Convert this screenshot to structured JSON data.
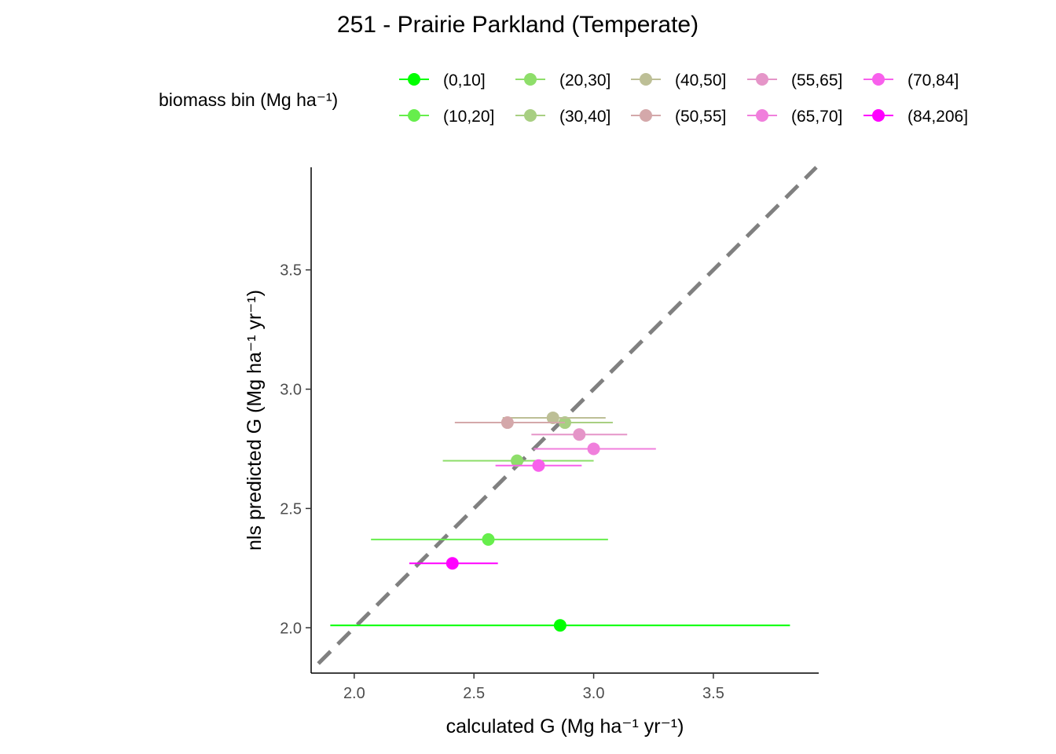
{
  "chart_data": {
    "type": "scatter",
    "title": "251 - Prairie Parkland (Temperate)",
    "xlabel": "calculated G (Mg ha⁻¹ yr⁻¹)",
    "ylabel": "nls predicted G (Mg ha⁻¹ yr⁻¹)",
    "xlim": [
      1.82,
      3.94
    ],
    "ylim": [
      1.81,
      3.93
    ],
    "x_ticks": [
      "2.0",
      "2.5",
      "3.0",
      "3.5"
    ],
    "y_ticks": [
      "2.0",
      "2.5",
      "3.0",
      "3.5"
    ],
    "reference_line": {
      "slope": 1,
      "intercept": 0,
      "style": "dashed",
      "color": "#808080"
    },
    "grid": false,
    "legend": {
      "title": "biomass bin (Mg ha⁻¹)",
      "position": "top"
    },
    "series": [
      {
        "name": "(0,10]",
        "color": "#00FF00",
        "x": 2.86,
        "y": 2.01,
        "xmin": 1.9,
        "xmax": 3.82
      },
      {
        "name": "(10,20]",
        "color": "#66EE4C",
        "x": 2.56,
        "y": 2.37,
        "xmin": 2.07,
        "xmax": 3.06
      },
      {
        "name": "(20,30]",
        "color": "#8EDE6A",
        "x": 2.68,
        "y": 2.7,
        "xmin": 2.37,
        "xmax": 3.0
      },
      {
        "name": "(30,40]",
        "color": "#A8CF82",
        "x": 2.88,
        "y": 2.86,
        "xmin": 2.65,
        "xmax": 3.08
      },
      {
        "name": "(40,50]",
        "color": "#BDBF96",
        "x": 2.83,
        "y": 2.88,
        "xmin": 2.62,
        "xmax": 3.05
      },
      {
        "name": "(50,55]",
        "color": "#D4A8AA",
        "x": 2.64,
        "y": 2.86,
        "xmin": 2.42,
        "xmax": 2.88
      },
      {
        "name": "(55,65]",
        "color": "#E595C8",
        "x": 2.94,
        "y": 2.81,
        "xmin": 2.74,
        "xmax": 3.14
      },
      {
        "name": "(65,70]",
        "color": "#F07FDC",
        "x": 3.0,
        "y": 2.75,
        "xmin": 2.75,
        "xmax": 3.26
      },
      {
        "name": "(70,84]",
        "color": "#F860EC",
        "x": 2.77,
        "y": 2.68,
        "xmin": 2.59,
        "xmax": 2.95
      },
      {
        "name": "(84,206]",
        "color": "#FF00FF",
        "x": 2.41,
        "y": 2.27,
        "xmin": 2.23,
        "xmax": 2.6
      }
    ]
  }
}
